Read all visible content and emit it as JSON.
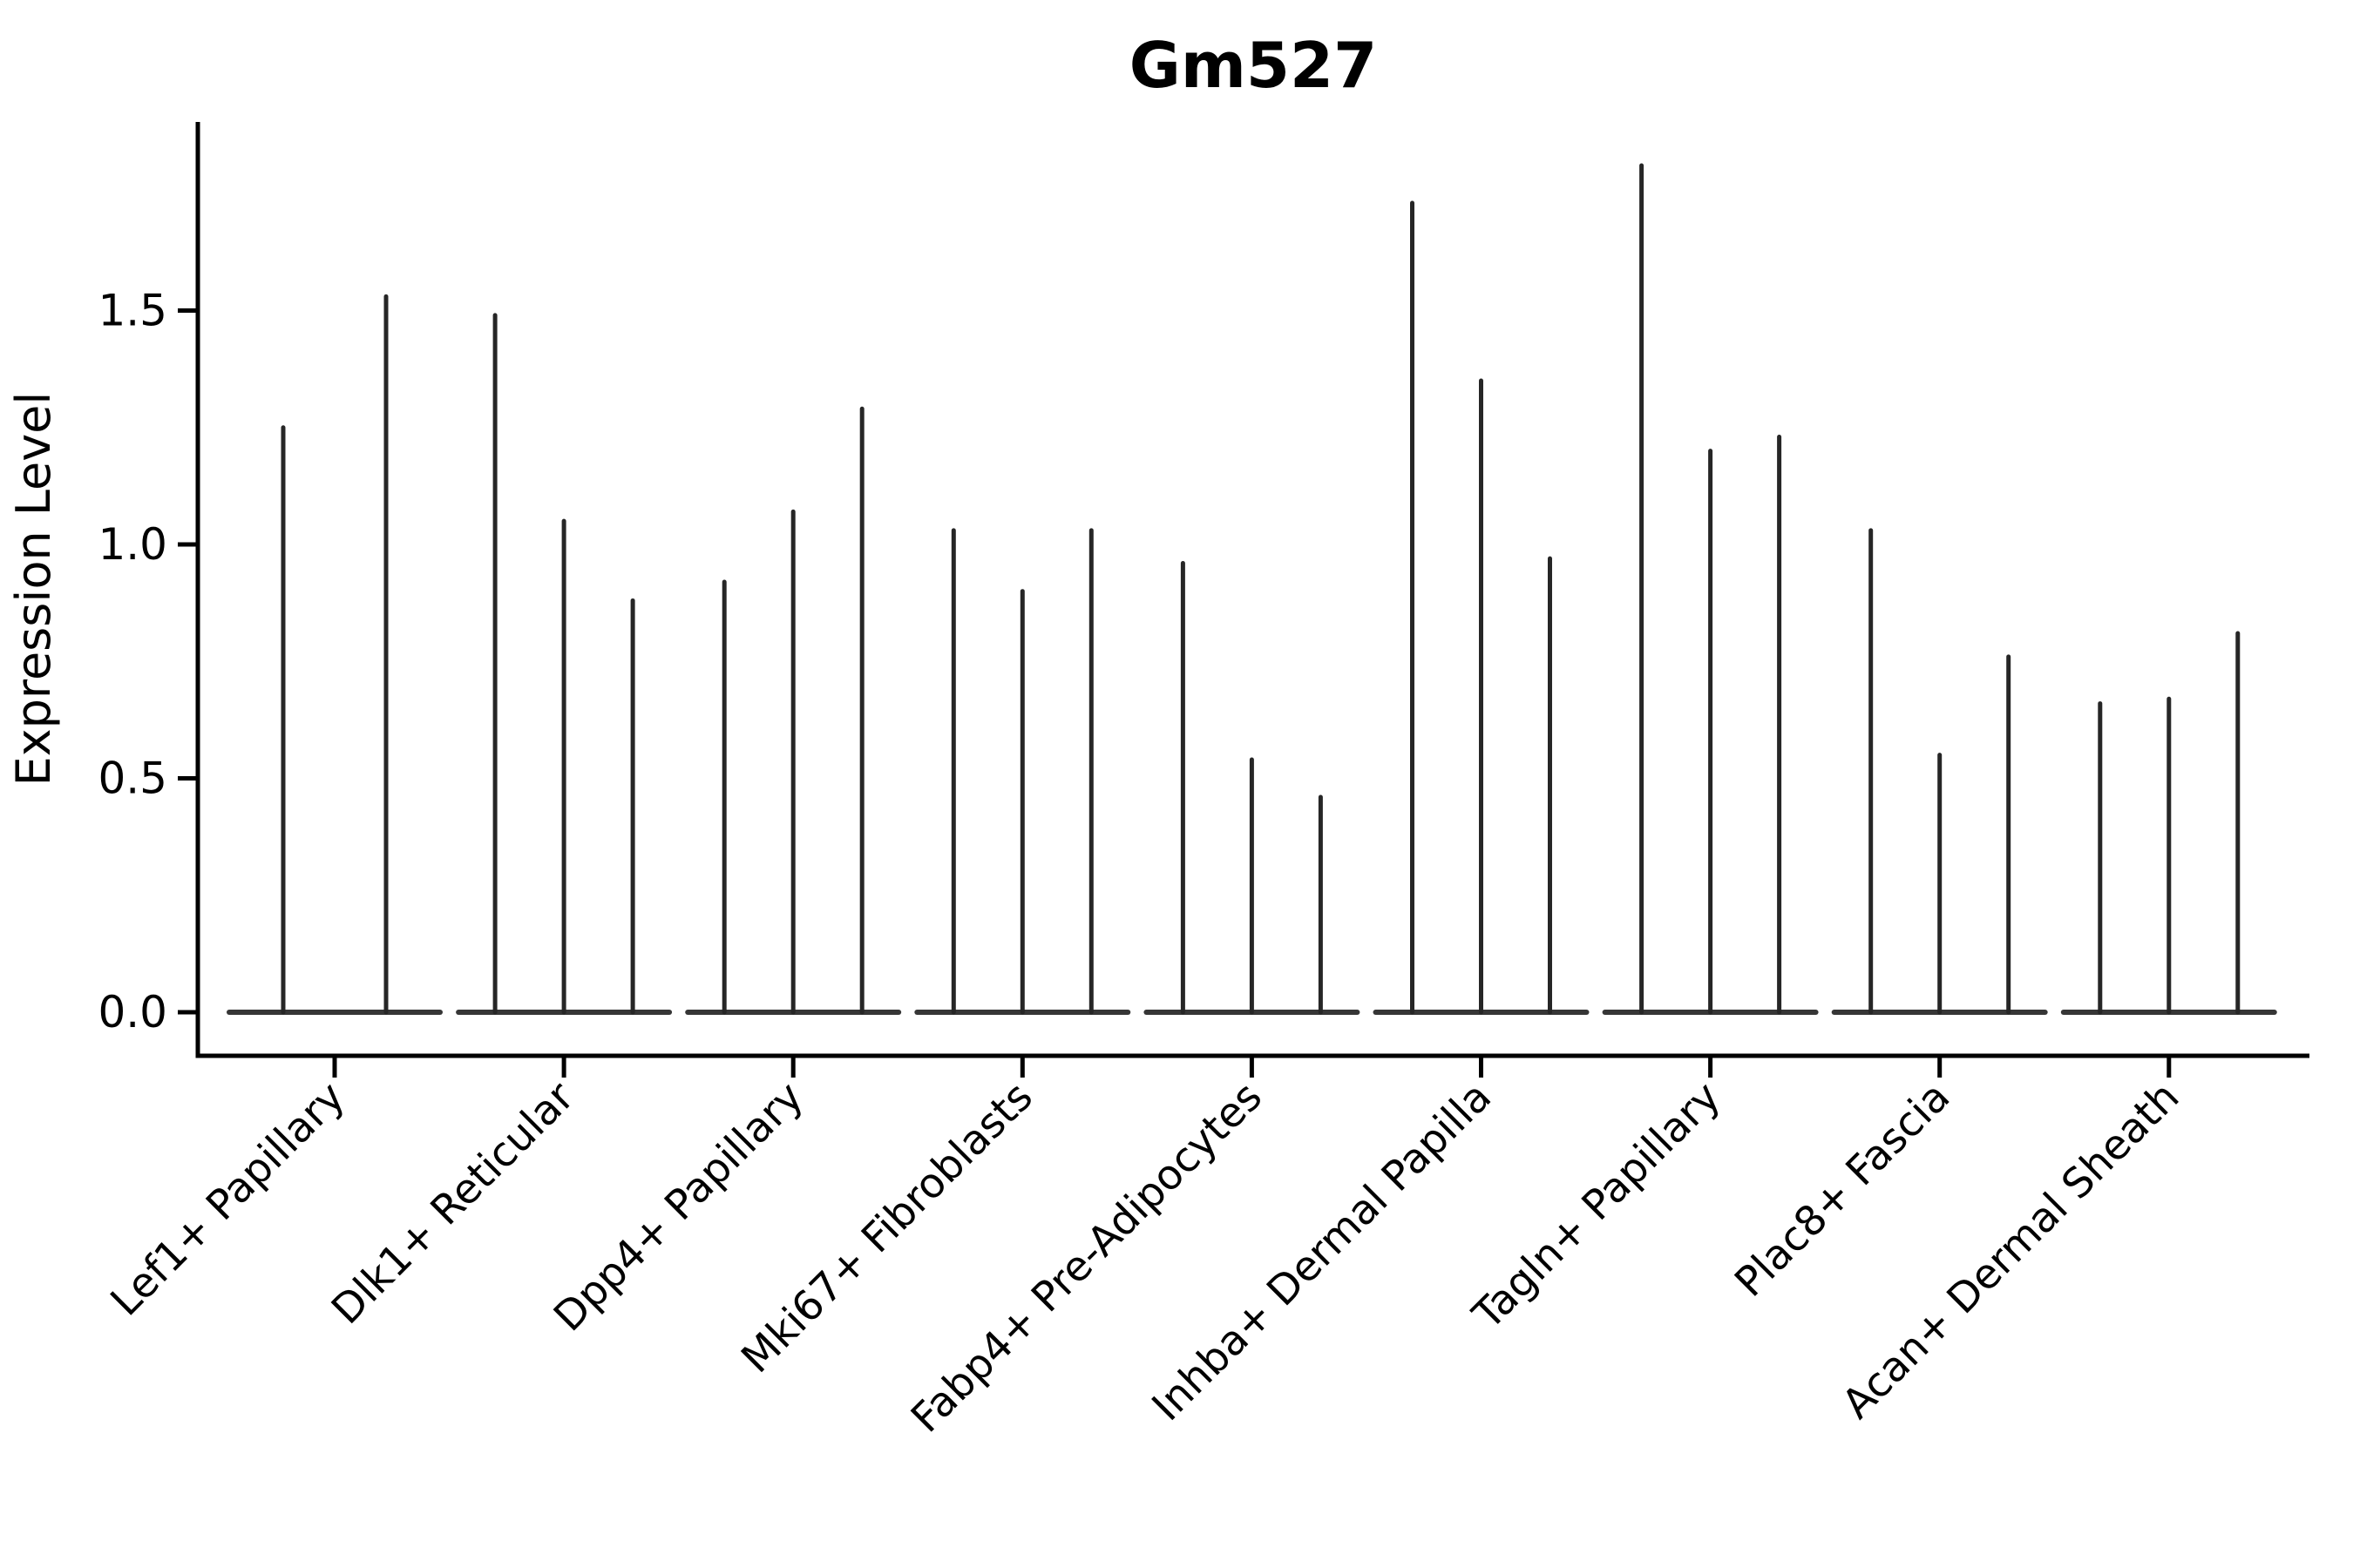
{
  "chart_data": {
    "type": "violin",
    "title": "Gm527",
    "ylabel": "Expression Level",
    "xlabel": "",
    "yticks": [
      0.0,
      0.5,
      1.0,
      1.5
    ],
    "ytick_labels": [
      "0.0",
      "0.5",
      "1.0",
      "1.5"
    ],
    "ylim": [
      -0.09,
      1.9
    ],
    "grid": false,
    "legend": "none",
    "description": "Violin plot of single-cell expression; each category shows 2-3 extremely thin violins (most cells at 0) rendered as a flat baseline at 0 with narrow spikes up to the maximum expression value",
    "groups": [
      {
        "label": "Lef1+ Papillary",
        "spike_max_values": [
          1.25,
          1.53
        ]
      },
      {
        "label": "Dlk1+ Reticular",
        "spike_max_values": [
          1.49,
          1.05,
          0.88
        ]
      },
      {
        "label": "Dpp4+ Papillary",
        "spike_max_values": [
          0.92,
          1.07,
          1.29
        ]
      },
      {
        "label": "Mki67+ Fibroblasts",
        "spike_max_values": [
          1.03,
          0.9,
          1.03
        ]
      },
      {
        "label": "Fabp4+ Pre-Adipocytes",
        "spike_max_values": [
          0.96,
          0.54,
          0.46
        ]
      },
      {
        "label": "Inhba+ Dermal Papilla",
        "spike_max_values": [
          1.73,
          1.35,
          0.97
        ]
      },
      {
        "label": "Tagln+ Papillary",
        "spike_max_values": [
          1.81,
          1.2,
          1.23
        ]
      },
      {
        "label": "Plac8+ Fascia",
        "spike_max_values": [
          1.03,
          0.55,
          0.76
        ]
      },
      {
        "label": "Acan+ Dermal Sheath",
        "spike_max_values": [
          0.66,
          0.67,
          0.81
        ]
      }
    ],
    "colors": {
      "violin_stroke": "#262626",
      "axis": "#000000",
      "text": "#000000",
      "background": "#ffffff"
    }
  }
}
